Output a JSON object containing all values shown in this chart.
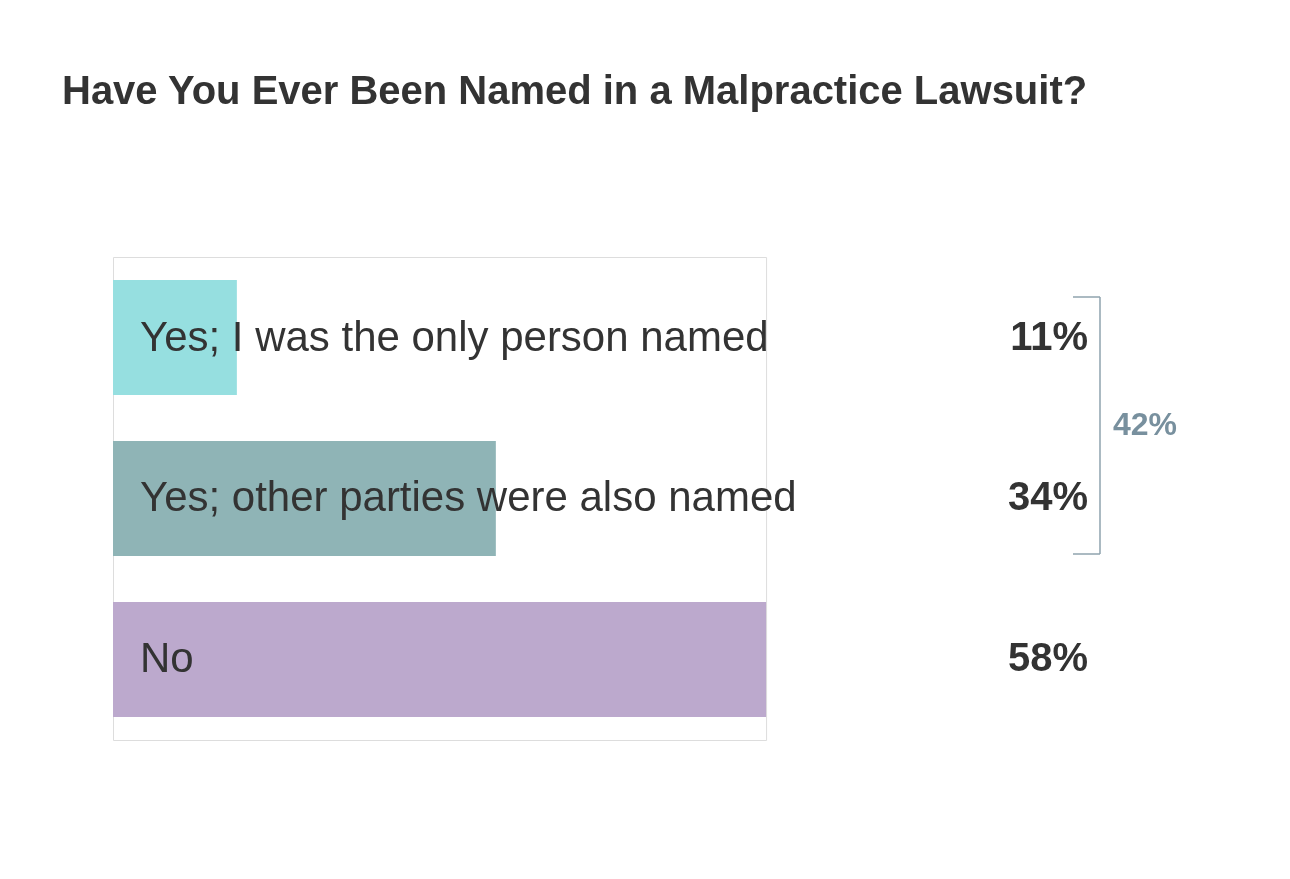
{
  "chart_data": {
    "type": "bar",
    "orientation": "horizontal",
    "title": "Have You Ever Been Named in a Malpractice Lawsuit?",
    "categories": [
      "Yes; I was the only person named",
      "Yes; other parties were also named",
      "No"
    ],
    "values": [
      11,
      34,
      58
    ],
    "colors": [
      "#96dfe0",
      "#8fb4b6",
      "#bca9cd"
    ],
    "value_labels": [
      "11%",
      "34%",
      "58%"
    ],
    "annotations": [
      "42%"
    ]
  }
}
